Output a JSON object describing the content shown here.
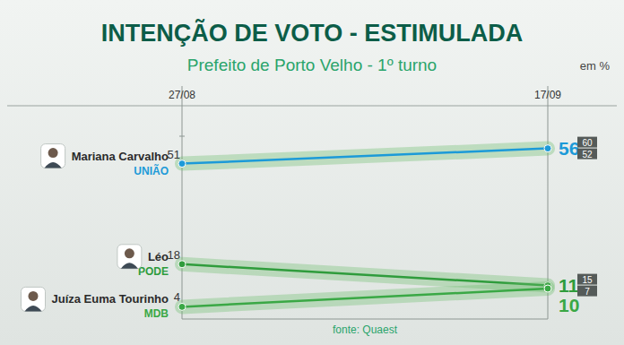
{
  "chart_data": {
    "type": "line",
    "title": "INTENÇÃO DE VOTO - ESTIMULADA",
    "subtitle": "Prefeito de Porto Velho - 1º turno",
    "unit_label": "em %",
    "source": "fonte: Quaest",
    "categories": [
      "27/08",
      "17/09"
    ],
    "series": [
      {
        "name": "Mariana Carvalho",
        "party": "UNIÃO",
        "color": "#1c9ad8",
        "values": [
          51,
          56
        ],
        "interval": [
          60,
          52
        ]
      },
      {
        "name": "Léo",
        "party": "PODE",
        "color": "#2f9c3c",
        "values": [
          18,
          11
        ],
        "interval": [
          15,
          7
        ]
      },
      {
        "name": "Juíza Euma Tourinho",
        "party": "MDB",
        "color": "#3aa845",
        "values": [
          4,
          10
        ]
      }
    ],
    "ylim": [
      0,
      60
    ],
    "tick_labels": "x",
    "data_labels": true,
    "marker": "circle",
    "grid": false
  }
}
